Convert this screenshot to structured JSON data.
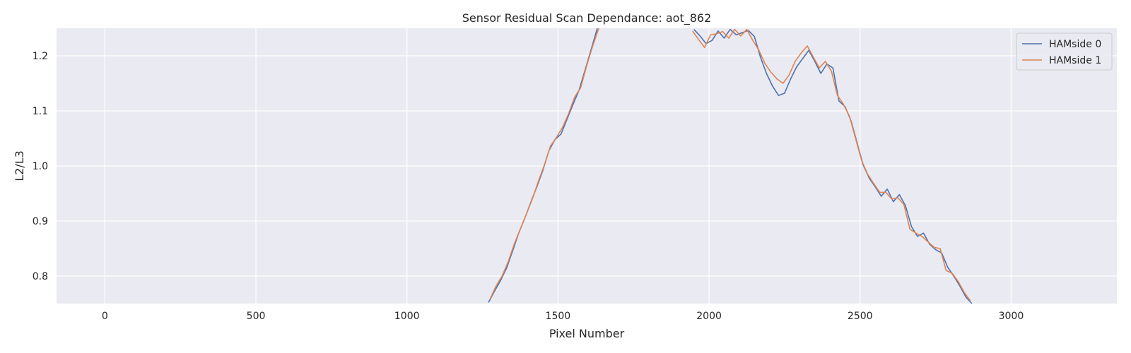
{
  "chart_data": {
    "type": "line",
    "title": "Sensor Residual Scan Dependance: aot_862",
    "xlabel": "Pixel Number",
    "ylabel": "L2/L3",
    "xlim": [
      -160,
      3350
    ],
    "ylim": [
      0.75,
      1.25
    ],
    "xticks": [
      0,
      500,
      1000,
      1500,
      2000,
      2500,
      3000
    ],
    "yticks": [
      0.8,
      0.9,
      1.0,
      1.1,
      1.2
    ],
    "grid": true,
    "legend_position": "top-right",
    "series": [
      {
        "name": "HAMside 0",
        "color": "#4c72b0",
        "x": [
          1270,
          1290,
          1310,
          1330,
          1350,
          1370,
          1390,
          1410,
          1430,
          1450,
          1470,
          1490,
          1510,
          1530,
          1550,
          1570,
          1590,
          1610,
          1630,
          1950,
          1970,
          1990,
          2010,
          2030,
          2050,
          2070,
          2090,
          2110,
          2130,
          2150,
          2170,
          2190,
          2210,
          2230,
          2250,
          2270,
          2290,
          2310,
          2330,
          2350,
          2370,
          2390,
          2410,
          2430,
          2450,
          2470,
          2490,
          2510,
          2530,
          2550,
          2570,
          2590,
          2610,
          2630,
          2650,
          2670,
          2690,
          2710,
          2730,
          2750,
          2770,
          2790,
          2810,
          2830,
          2850,
          2870
        ],
        "y": [
          0.752,
          0.773,
          0.792,
          0.815,
          0.846,
          0.878,
          0.905,
          0.934,
          0.962,
          0.992,
          1.028,
          1.048,
          1.058,
          1.085,
          1.112,
          1.138,
          1.175,
          1.212,
          1.25,
          1.248,
          1.236,
          1.222,
          1.228,
          1.245,
          1.232,
          1.248,
          1.238,
          1.242,
          1.246,
          1.235,
          1.198,
          1.168,
          1.145,
          1.128,
          1.132,
          1.158,
          1.18,
          1.195,
          1.21,
          1.19,
          1.168,
          1.185,
          1.178,
          1.118,
          1.108,
          1.082,
          1.042,
          1.002,
          0.978,
          0.962,
          0.945,
          0.958,
          0.935,
          0.948,
          0.928,
          0.89,
          0.872,
          0.878,
          0.858,
          0.848,
          0.842,
          0.816,
          0.8,
          0.782,
          0.762,
          0.75
        ]
      },
      {
        "name": "HAMside 1",
        "color": "#dd8452",
        "x": [
          1275,
          1295,
          1315,
          1335,
          1355,
          1375,
          1395,
          1415,
          1435,
          1455,
          1475,
          1495,
          1515,
          1535,
          1555,
          1575,
          1595,
          1615,
          1635,
          1945,
          1965,
          1985,
          2005,
          2025,
          2045,
          2065,
          2085,
          2105,
          2125,
          2145,
          2165,
          2185,
          2205,
          2225,
          2245,
          2265,
          2285,
          2305,
          2325,
          2345,
          2365,
          2385,
          2405,
          2425,
          2445,
          2465,
          2485,
          2505,
          2525,
          2545,
          2565,
          2585,
          2605,
          2625,
          2645,
          2665,
          2685,
          2705,
          2725,
          2745,
          2765,
          2785,
          2805,
          2825,
          2845,
          2865
        ],
        "y": [
          0.758,
          0.782,
          0.8,
          0.826,
          0.858,
          0.885,
          0.912,
          0.94,
          0.972,
          1.002,
          1.036,
          1.052,
          1.07,
          1.095,
          1.125,
          1.142,
          1.182,
          1.218,
          1.25,
          1.245,
          1.23,
          1.215,
          1.238,
          1.24,
          1.244,
          1.232,
          1.248,
          1.236,
          1.248,
          1.228,
          1.21,
          1.186,
          1.17,
          1.158,
          1.15,
          1.165,
          1.19,
          1.205,
          1.218,
          1.198,
          1.178,
          1.19,
          1.172,
          1.128,
          1.112,
          1.09,
          1.05,
          1.01,
          0.985,
          0.968,
          0.952,
          0.952,
          0.94,
          0.942,
          0.93,
          0.885,
          0.878,
          0.872,
          0.862,
          0.852,
          0.85,
          0.81,
          0.805,
          0.79,
          0.77,
          0.755
        ]
      }
    ]
  }
}
